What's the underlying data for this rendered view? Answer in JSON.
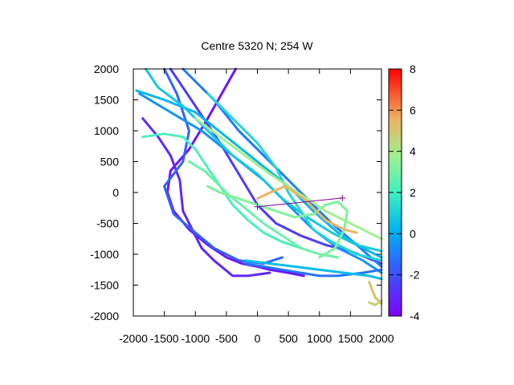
{
  "chart_data": {
    "type": "scatter",
    "title": "Centre 5320 N; 254  W",
    "xlabel": "",
    "ylabel": "",
    "xlim": [
      -2000,
      2000
    ],
    "ylim": [
      -2000,
      2000
    ],
    "x_ticks": [
      -2000,
      -1500,
      -1000,
      -500,
      0,
      500,
      1000,
      1500,
      2000
    ],
    "y_ticks": [
      -2000,
      -1500,
      -1000,
      -500,
      0,
      500,
      1000,
      1500,
      2000
    ],
    "colorbar": {
      "range": [
        -4,
        8
      ],
      "ticks": [
        -4,
        -2,
        0,
        2,
        4,
        6,
        8
      ],
      "palette": "rainbow"
    },
    "grid": false,
    "markers": [
      {
        "x": 0,
        "y": -230,
        "symbol": "+"
      },
      {
        "x": 1370,
        "y": -90,
        "symbol": "+"
      }
    ],
    "connector": {
      "from": [
        0,
        -230
      ],
      "to": [
        1370,
        -90
      ],
      "color": "#8000a0"
    },
    "series": [
      {
        "color_value": -3.5,
        "points": [
          [
            -350,
            2000
          ],
          [
            -800,
            1200
          ],
          [
            -1100,
            700
          ],
          [
            -1400,
            350
          ],
          [
            -1450,
            0
          ],
          [
            -1350,
            -300
          ],
          [
            -1100,
            -600
          ],
          [
            -800,
            -850
          ],
          [
            -500,
            -1050
          ],
          [
            -250,
            -1150
          ],
          [
            0,
            -1200
          ],
          [
            200,
            -1250
          ],
          [
            500,
            -1300
          ],
          [
            750,
            -1350
          ]
        ]
      },
      {
        "color_value": -3,
        "points": [
          [
            -1850,
            1200
          ],
          [
            -1600,
            900
          ],
          [
            -1400,
            600
          ],
          [
            -1250,
            200
          ],
          [
            -1200,
            -300
          ],
          [
            -1050,
            -600
          ],
          [
            -900,
            -900
          ],
          [
            -700,
            -1100
          ],
          [
            -400,
            -1350
          ],
          [
            -150,
            -1350
          ],
          [
            200,
            -1300
          ]
        ]
      },
      {
        "color_value": -2.5,
        "points": [
          [
            -1400,
            2000
          ],
          [
            -1000,
            1400
          ],
          [
            -600,
            800
          ],
          [
            -300,
            300
          ],
          [
            0,
            -200
          ],
          [
            300,
            -500
          ],
          [
            700,
            -700
          ],
          [
            1100,
            -850
          ],
          [
            1500,
            -950
          ],
          [
            2000,
            -1150
          ]
        ]
      },
      {
        "color_value": -1.5,
        "points": [
          [
            -1500,
            2000
          ],
          [
            -1300,
            1600
          ],
          [
            -1100,
            1000
          ],
          [
            -1200,
            500
          ],
          [
            -1500,
            100
          ],
          [
            -1350,
            -350
          ],
          [
            -1000,
            -650
          ],
          [
            -700,
            -900
          ],
          [
            -300,
            -1100
          ],
          [
            100,
            -1150
          ],
          [
            400,
            -1050
          ]
        ]
      },
      {
        "color_value": -1,
        "points": [
          [
            -1200,
            2000
          ],
          [
            -700,
            1500
          ],
          [
            -300,
            1000
          ],
          [
            200,
            500
          ],
          [
            700,
            0
          ],
          [
            1200,
            -500
          ],
          [
            1600,
            -850
          ],
          [
            2000,
            -1200
          ]
        ]
      },
      {
        "color_value": -0.5,
        "points": [
          [
            -1900,
            1600
          ],
          [
            -1400,
            1300
          ],
          [
            -900,
            1000
          ],
          [
            -400,
            600
          ],
          [
            100,
            200
          ],
          [
            500,
            -200
          ],
          [
            900,
            -600
          ],
          [
            1300,
            -900
          ],
          [
            1700,
            -1100
          ],
          [
            2000,
            -1300
          ]
        ]
      },
      {
        "color_value": 0.3,
        "points": [
          [
            -1950,
            1650
          ],
          [
            -1500,
            1500
          ],
          [
            -1000,
            1300
          ],
          [
            -500,
            900
          ],
          [
            0,
            500
          ],
          [
            500,
            100
          ],
          [
            900,
            -300
          ],
          [
            1300,
            -650
          ],
          [
            1700,
            -900
          ],
          [
            2000,
            -1050
          ]
        ]
      },
      {
        "color_value": 0.8,
        "points": [
          [
            -1800,
            2000
          ],
          [
            -1600,
            1700
          ],
          [
            -1200,
            1400
          ],
          [
            -800,
            1000
          ],
          [
            -400,
            600
          ],
          [
            0,
            300
          ],
          [
            400,
            -100
          ],
          [
            800,
            -400
          ],
          [
            1200,
            -650
          ],
          [
            1600,
            -850
          ],
          [
            2000,
            -950
          ]
        ]
      },
      {
        "color_value": 1.2,
        "points": [
          [
            -800,
            1600
          ],
          [
            -400,
            1200
          ],
          [
            0,
            800
          ],
          [
            300,
            400
          ],
          [
            500,
            0
          ],
          [
            700,
            -300
          ],
          [
            900,
            -600
          ],
          [
            1200,
            -800
          ],
          [
            1600,
            -1000
          ],
          [
            2000,
            -1100
          ]
        ]
      },
      {
        "color_value": -1.2,
        "points": [
          [
            -200,
            -1150
          ],
          [
            100,
            -1200
          ],
          [
            400,
            -1250
          ],
          [
            700,
            -1300
          ],
          [
            1000,
            -1350
          ],
          [
            1300,
            -1350
          ],
          [
            1700,
            -1300
          ],
          [
            2000,
            -1250
          ]
        ]
      },
      {
        "color_value": 0.5,
        "points": [
          [
            -200,
            -1100
          ],
          [
            200,
            -1150
          ],
          [
            600,
            -1200
          ],
          [
            1000,
            -1250
          ],
          [
            1400,
            -1300
          ],
          [
            1800,
            -1350
          ],
          [
            2000,
            -1400
          ]
        ]
      },
      {
        "color_value": 2.2,
        "points": [
          [
            -1850,
            900
          ],
          [
            -1500,
            950
          ],
          [
            -1200,
            900
          ],
          [
            -1000,
            700
          ],
          [
            -800,
            400
          ],
          [
            -600,
            100
          ],
          [
            -400,
            -200
          ],
          [
            -150,
            -450
          ],
          [
            100,
            -650
          ],
          [
            400,
            -800
          ],
          [
            700,
            -900
          ]
        ]
      },
      {
        "color_value": 2.8,
        "points": [
          [
            -1100,
            500
          ],
          [
            -850,
            350
          ],
          [
            -650,
            150
          ],
          [
            -450,
            -50
          ],
          [
            -200,
            -250
          ],
          [
            100,
            -500
          ],
          [
            400,
            -700
          ],
          [
            700,
            -900
          ],
          [
            1000,
            -1000
          ],
          [
            1300,
            -1050
          ]
        ]
      },
      {
        "color_value": 3.2,
        "points": [
          [
            -800,
            100
          ],
          [
            -600,
            0
          ],
          [
            -300,
            -100
          ],
          [
            0,
            -200
          ],
          [
            300,
            -300
          ],
          [
            600,
            -400
          ],
          [
            900,
            -350
          ],
          [
            1100,
            -200
          ],
          [
            1300,
            -150
          ],
          [
            1450,
            -300
          ],
          [
            1400,
            -600
          ],
          [
            1250,
            -900
          ],
          [
            1000,
            -1050
          ]
        ]
      },
      {
        "color_value": 3.8,
        "points": [
          [
            -1000,
            1200
          ],
          [
            -600,
            900
          ],
          [
            -200,
            600
          ],
          [
            200,
            300
          ],
          [
            500,
            100
          ],
          [
            800,
            -100
          ],
          [
            1100,
            -300
          ],
          [
            1400,
            -450
          ],
          [
            1700,
            -600
          ],
          [
            2000,
            -750
          ]
        ]
      },
      {
        "color_value": 5.5,
        "points": [
          [
            0,
            -100
          ],
          [
            200,
            0
          ],
          [
            450,
            100
          ],
          [
            600,
            0
          ],
          [
            750,
            -100
          ],
          [
            900,
            -250
          ],
          [
            1100,
            -450
          ],
          [
            1400,
            -600
          ],
          [
            1600,
            -650
          ]
        ]
      },
      {
        "color_value": 5.2,
        "points": [
          [
            1800,
            -1450
          ],
          [
            1900,
            -1700
          ],
          [
            2000,
            -1800
          ]
        ]
      },
      {
        "color_value": 4.8,
        "points": [
          [
            1800,
            -1780
          ],
          [
            1900,
            -1820
          ],
          [
            2000,
            -1750
          ]
        ]
      }
    ]
  }
}
